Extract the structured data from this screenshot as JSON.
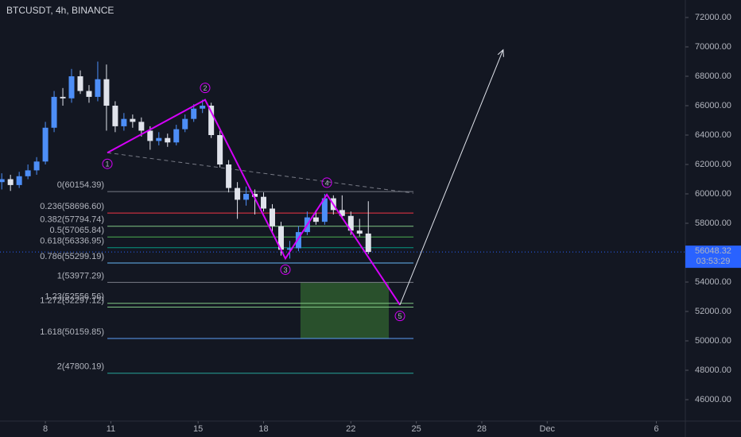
{
  "chart_data": {
    "type": "candlestick",
    "title": "BTCUSDT, 4h, BINANCE",
    "x": [
      -2.0,
      -1.6,
      -1.2,
      -0.8,
      -0.4,
      0.0,
      0.4,
      0.8,
      1.2,
      1.6,
      2.0,
      2.4,
      2.8,
      3.2,
      3.6,
      4.0,
      4.4,
      4.8,
      5.2,
      5.6,
      6.0,
      6.4,
      6.8,
      7.2,
      7.6,
      8.0,
      8.4,
      8.8,
      9.2,
      9.6,
      10.0,
      10.4,
      10.8,
      11.2,
      11.6,
      12.0,
      12.4,
      12.8,
      13.2,
      13.6,
      14.0,
      14.4,
      14.8
    ],
    "open": [
      60800,
      61000,
      60600,
      61200,
      61600,
      62200,
      64500,
      66600,
      66500,
      68000,
      67000,
      66600,
      67800,
      66000,
      64600,
      65100,
      64900,
      64300,
      63600,
      63800,
      63500,
      64400,
      65100,
      65800,
      66000,
      64000,
      62000,
      60400,
      59600,
      60000,
      59800,
      59000,
      57800,
      56200,
      56300,
      57400,
      58400,
      58100,
      59700,
      58900,
      58500,
      57500,
      57300
    ],
    "high": [
      61400,
      61300,
      61500,
      62000,
      62500,
      64900,
      67000,
      67200,
      68500,
      68400,
      67400,
      69000,
      68800,
      66300,
      65500,
      65400,
      65200,
      64600,
      64200,
      64100,
      64700,
      65400,
      66100,
      66400,
      66200,
      64300,
      62300,
      60800,
      60500,
      60300,
      60100,
      59300,
      58100,
      56800,
      57800,
      58800,
      58900,
      60000,
      59900,
      59900,
      58800,
      58300,
      59500
    ],
    "low": [
      60300,
      60200,
      60400,
      61000,
      61300,
      62000,
      64200,
      66000,
      66200,
      66800,
      66200,
      66300,
      64300,
      64200,
      64300,
      64500,
      63900,
      63000,
      63300,
      63200,
      63300,
      64200,
      64900,
      65500,
      63800,
      61800,
      60100,
      58300,
      59200,
      58600,
      58800,
      57400,
      55800,
      55600,
      56100,
      57200,
      57900,
      57900,
      58600,
      58300,
      57200,
      57100,
      55900
    ],
    "close": [
      61000,
      60600,
      61200,
      61600,
      62200,
      64500,
      66600,
      66500,
      68000,
      67000,
      66600,
      67800,
      66000,
      64600,
      65100,
      64900,
      64300,
      63600,
      63800,
      63500,
      64400,
      65100,
      65800,
      66000,
      64000,
      62000,
      60400,
      59600,
      60000,
      59800,
      59000,
      57800,
      56200,
      56300,
      57400,
      58400,
      58100,
      59700,
      58900,
      58500,
      57500,
      57300,
      56048
    ],
    "up_color": "#4d8ef7",
    "down_color": "#e0e3eb",
    "xlim": [
      -2.08,
      29.33
    ],
    "xticks": [
      {
        "value": 0,
        "label": "8"
      },
      {
        "value": 3,
        "label": "11"
      },
      {
        "value": 7,
        "label": "15"
      },
      {
        "value": 10,
        "label": "18"
      },
      {
        "value": 14,
        "label": "22"
      },
      {
        "value": 17,
        "label": "25"
      },
      {
        "value": 20,
        "label": "28"
      },
      {
        "value": 23,
        "label": "Dec"
      },
      {
        "value": 28,
        "label": "6"
      }
    ],
    "ylim": [
      44540,
      73190
    ],
    "yticks": [
      {
        "value": 46000,
        "label": "46000.00"
      },
      {
        "value": 48000,
        "label": "48000.00"
      },
      {
        "value": 50000,
        "label": "50000.00"
      },
      {
        "value": 52000,
        "label": "52000.00"
      },
      {
        "value": 54000,
        "label": "54000.00"
      },
      {
        "value": 58000,
        "label": "58000.00"
      },
      {
        "value": 60000,
        "label": "60000.00"
      },
      {
        "value": 62000,
        "label": "62000.00"
      },
      {
        "value": 64000,
        "label": "64000.00"
      },
      {
        "value": 66000,
        "label": "66000.00"
      },
      {
        "value": 68000,
        "label": "68000.00"
      },
      {
        "value": 70000,
        "label": "70000.00"
      },
      {
        "value": 72000,
        "label": "72000.00"
      }
    ],
    "last_price": 56048.32,
    "countdown": "03:53:29",
    "last_price_color": "#2962ff",
    "fib": {
      "x": [
        2.84,
        16.87
      ],
      "levels": [
        {
          "label": "0(60154.39)",
          "price": 60154.39,
          "color": "#787b86"
        },
        {
          "label": "0.236(58696.60)",
          "price": 58696.6,
          "color": "#f23645"
        },
        {
          "label": "0.382(57794.74)",
          "price": 57794.74,
          "color": "#81c784"
        },
        {
          "label": "0.5(57065.84)",
          "price": 57065.84,
          "color": "#4caf50"
        },
        {
          "label": "0.618(56336.95)",
          "price": 56336.95,
          "color": "#089981"
        },
        {
          "label": "0.786(55299.19)",
          "price": 55299.19,
          "color": "#64b5f6"
        },
        {
          "label": "1(53977.29)",
          "price": 53977.29,
          "color": "#787b86"
        },
        {
          "label": "1.23(52556.56)",
          "price": 52556.56,
          "color": "#81c784"
        },
        {
          "label": "1.272(52297.12)",
          "price": 52297.12,
          "color": "#81c784"
        },
        {
          "label": "1.618(50159.85)",
          "price": 50159.85,
          "color": "#5b9cf6"
        },
        {
          "label": "2(47800.19)",
          "price": 47800.19,
          "color": "#26a69a"
        }
      ]
    },
    "waves": {
      "color": "#d500f9",
      "points": [
        {
          "label": "1",
          "x": 2.84,
          "y": 62800
        },
        {
          "label": "2",
          "x": 7.32,
          "y": 66400
        },
        {
          "label": "3",
          "x": 11.0,
          "y": 55600
        },
        {
          "label": "4",
          "x": 12.9,
          "y": 59950
        },
        {
          "label": "5",
          "x": 16.25,
          "y": 52450
        }
      ]
    },
    "trendline": {
      "x": [
        2.84,
        16.87
      ],
      "y": [
        62800,
        60050
      ]
    },
    "target_box": {
      "x": [
        11.69,
        15.74
      ],
      "y": [
        50160,
        54000
      ],
      "color": "#2e5a2e"
    },
    "arrow": {
      "x": [
        16.25,
        20.98
      ],
      "y": [
        52450,
        69800
      ]
    }
  }
}
